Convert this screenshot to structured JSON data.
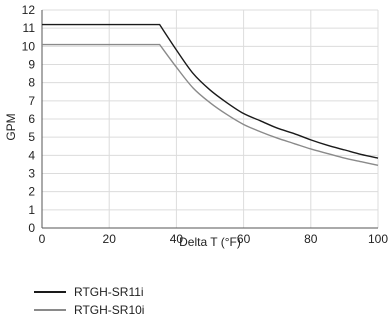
{
  "chart_data": {
    "type": "line",
    "title": "",
    "xlabel": "Delta T (°F)",
    "ylabel": "GPM",
    "xlim": [
      0,
      100
    ],
    "ylim": [
      0,
      12
    ],
    "xticks": [
      0,
      20,
      40,
      60,
      80,
      100
    ],
    "yticks": [
      0,
      1,
      2,
      3,
      4,
      5,
      6,
      7,
      8,
      9,
      10,
      11,
      12
    ],
    "grid": true,
    "legend_position": "bottom-left",
    "series": [
      {
        "name": "RTGH-SR11i",
        "color": "#1a1a1a",
        "points": [
          [
            0,
            11.2
          ],
          [
            35,
            11.2
          ],
          [
            40,
            9.8
          ],
          [
            45,
            8.5
          ],
          [
            50,
            7.6
          ],
          [
            55,
            6.9
          ],
          [
            60,
            6.3
          ],
          [
            65,
            5.9
          ],
          [
            70,
            5.5
          ],
          [
            75,
            5.2
          ],
          [
            80,
            4.85
          ],
          [
            85,
            4.55
          ],
          [
            90,
            4.3
          ],
          [
            95,
            4.05
          ],
          [
            100,
            3.85
          ]
        ]
      },
      {
        "name": "RTGH-SR10i",
        "color": "#8a8a8a",
        "points": [
          [
            0,
            10.1
          ],
          [
            35,
            10.1
          ],
          [
            40,
            8.85
          ],
          [
            45,
            7.7
          ],
          [
            50,
            6.9
          ],
          [
            55,
            6.25
          ],
          [
            60,
            5.7
          ],
          [
            65,
            5.3
          ],
          [
            70,
            4.95
          ],
          [
            75,
            4.65
          ],
          [
            80,
            4.35
          ],
          [
            85,
            4.1
          ],
          [
            90,
            3.85
          ],
          [
            95,
            3.65
          ],
          [
            100,
            3.45
          ]
        ]
      }
    ]
  }
}
